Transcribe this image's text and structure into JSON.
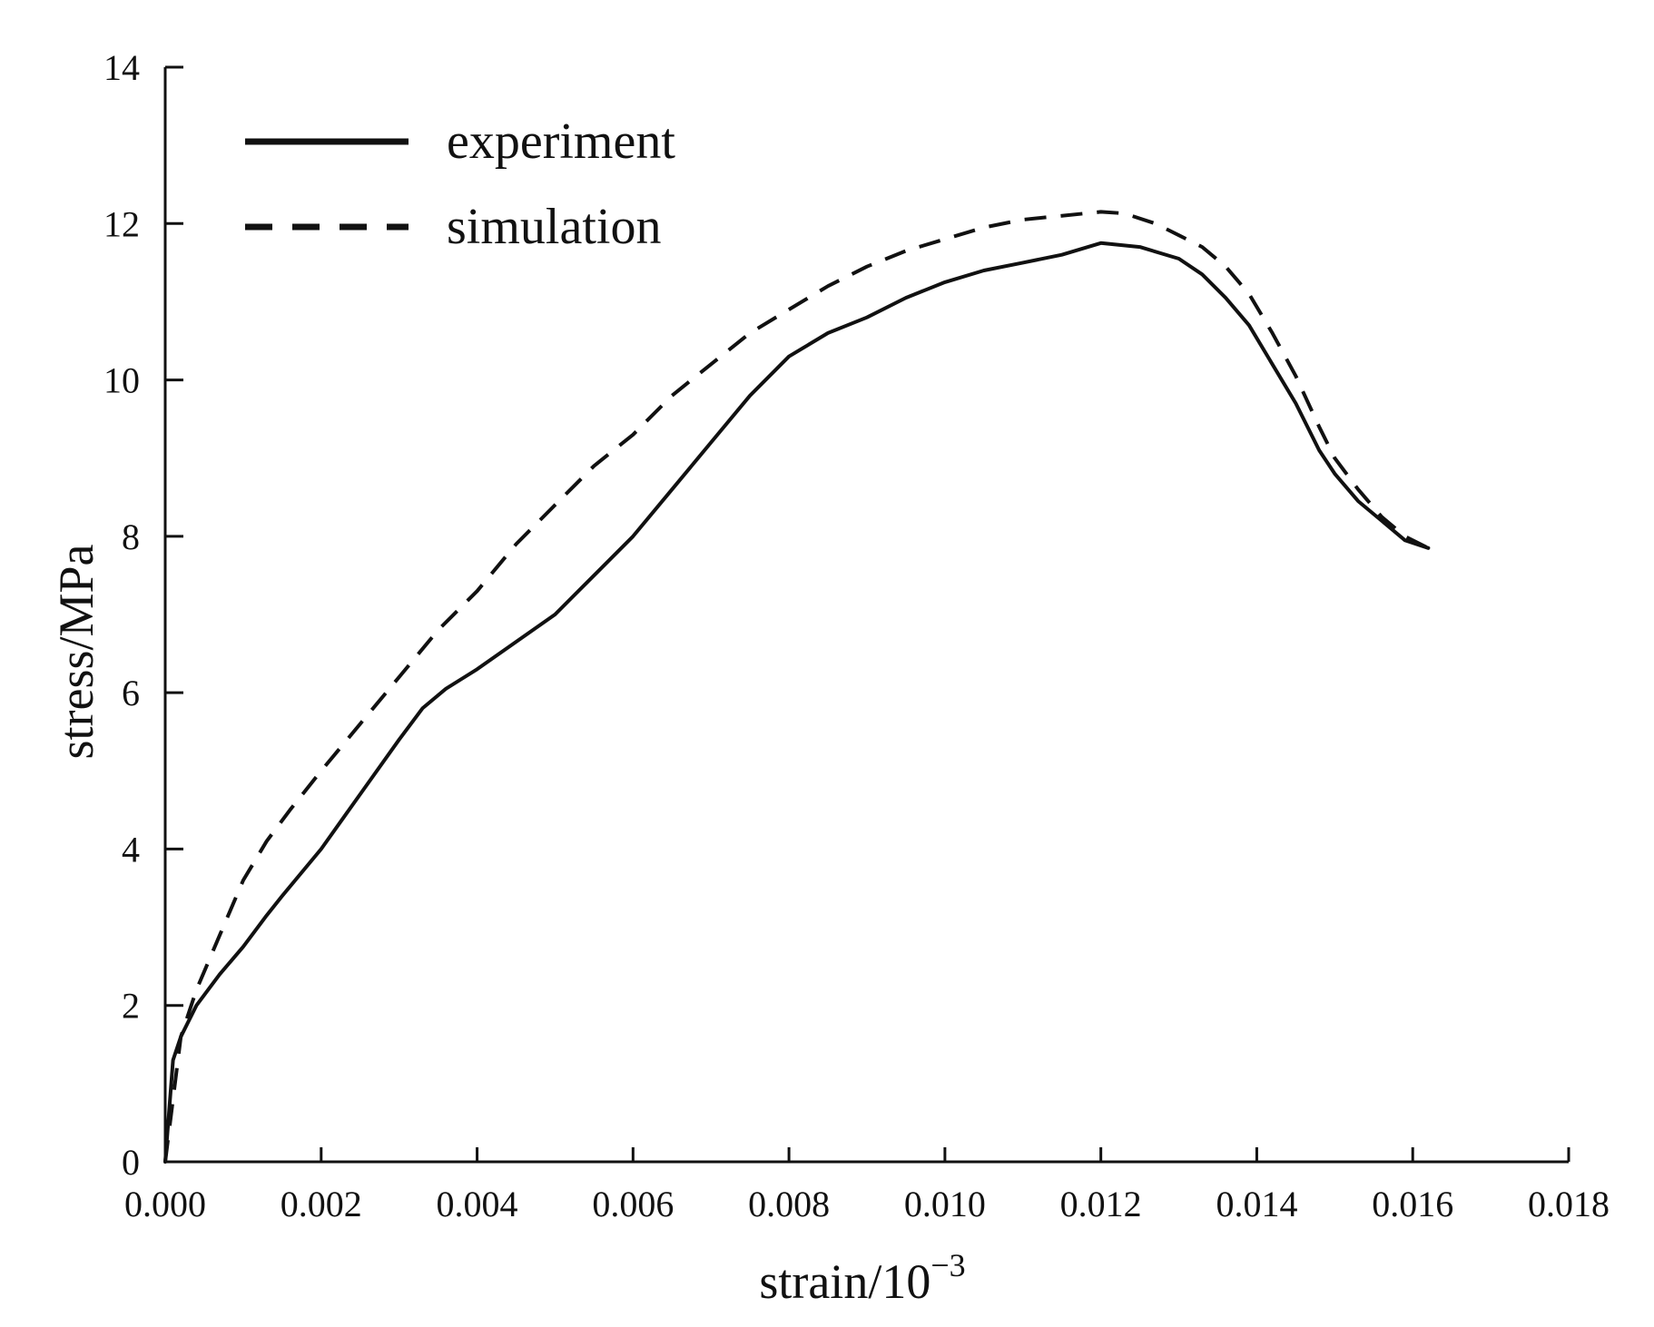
{
  "chart_data": {
    "type": "line",
    "title": "",
    "xlabel": "strain/10",
    "xlabel_superscript": "−3",
    "ylabel": "stress/MPa",
    "xlim": [
      0,
      0.018
    ],
    "ylim": [
      0,
      14
    ],
    "x_ticks": [
      "0.000",
      "0.002",
      "0.004",
      "0.006",
      "0.008",
      "0.010",
      "0.012",
      "0.014",
      "0.016",
      "0.018"
    ],
    "y_ticks": [
      "0",
      "2",
      "4",
      "6",
      "8",
      "10",
      "12",
      "14"
    ],
    "grid": false,
    "legend_position": "top-left",
    "series": [
      {
        "name": "experiment",
        "style": "solid",
        "color": "#111111",
        "x": [
          0,
          0.0001,
          0.0002,
          0.0004,
          0.0007,
          0.001,
          0.0013,
          0.0015,
          0.002,
          0.0025,
          0.003,
          0.0033,
          0.0036,
          0.004,
          0.0045,
          0.005,
          0.0055,
          0.006,
          0.0065,
          0.007,
          0.0075,
          0.008,
          0.0085,
          0.009,
          0.0095,
          0.01,
          0.0105,
          0.011,
          0.0115,
          0.012,
          0.0125,
          0.013,
          0.0133,
          0.0136,
          0.0139,
          0.0142,
          0.0145,
          0.0148,
          0.015,
          0.0153,
          0.0156,
          0.0159,
          0.0162
        ],
        "y": [
          0,
          1.3,
          1.6,
          2.0,
          2.4,
          2.75,
          3.15,
          3.4,
          4.0,
          4.7,
          5.4,
          5.8,
          6.05,
          6.3,
          6.65,
          7.0,
          7.5,
          8.0,
          8.6,
          9.2,
          9.8,
          10.3,
          10.6,
          10.8,
          11.05,
          11.25,
          11.4,
          11.5,
          11.6,
          11.75,
          11.7,
          11.55,
          11.35,
          11.05,
          10.7,
          10.2,
          9.7,
          9.1,
          8.8,
          8.45,
          8.2,
          7.95,
          7.85
        ]
      },
      {
        "name": "simulation",
        "style": "dashed",
        "color": "#111111",
        "x": [
          0,
          0.0002,
          0.0004,
          0.0007,
          0.001,
          0.0013,
          0.0016,
          0.002,
          0.0025,
          0.003,
          0.0035,
          0.004,
          0.0045,
          0.005,
          0.0055,
          0.006,
          0.0065,
          0.007,
          0.0075,
          0.008,
          0.0085,
          0.009,
          0.0095,
          0.01,
          0.0105,
          0.011,
          0.0115,
          0.012,
          0.0123,
          0.0127,
          0.013,
          0.0133,
          0.0136,
          0.0139,
          0.0142,
          0.0145,
          0.0148,
          0.015,
          0.0153,
          0.0156,
          0.0159,
          0.0162
        ],
        "y": [
          0,
          1.6,
          2.2,
          2.9,
          3.6,
          4.1,
          4.5,
          5.0,
          5.6,
          6.2,
          6.8,
          7.3,
          7.9,
          8.4,
          8.9,
          9.3,
          9.8,
          10.2,
          10.6,
          10.9,
          11.2,
          11.45,
          11.65,
          11.8,
          11.95,
          12.05,
          12.1,
          12.15,
          12.13,
          12.0,
          11.85,
          11.7,
          11.45,
          11.1,
          10.6,
          10.05,
          9.4,
          9.0,
          8.6,
          8.25,
          8.0,
          7.85
        ]
      }
    ]
  }
}
